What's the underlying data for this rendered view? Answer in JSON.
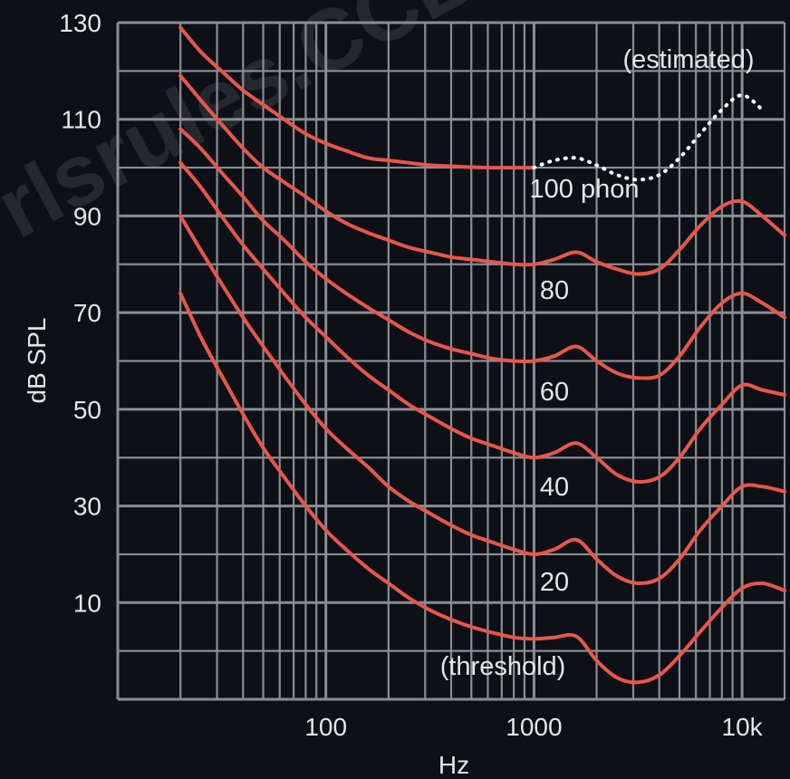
{
  "watermark": "rlsrules.CCB",
  "chart_data": {
    "type": "line",
    "title": "",
    "xlabel": "Hz",
    "ylabel": "dB SPL",
    "x_scale": "log",
    "xlim": [
      10,
      16000
    ],
    "ylim": [
      -10,
      130
    ],
    "x_ticks": [
      {
        "value": 100,
        "label": "100"
      },
      {
        "value": 1000,
        "label": "1000"
      },
      {
        "value": 10000,
        "label": "10k"
      }
    ],
    "y_ticks": [
      {
        "value": 10,
        "label": "10"
      },
      {
        "value": 30,
        "label": "30"
      },
      {
        "value": 50,
        "label": "50"
      },
      {
        "value": 70,
        "label": "70"
      },
      {
        "value": 90,
        "label": "90"
      },
      {
        "value": 110,
        "label": "110"
      },
      {
        "value": 130,
        "label": "130"
      }
    ],
    "grid": true,
    "colors": {
      "curve": "#e8574a",
      "estimated": "#ffffff",
      "grid": "#8a8d93",
      "background": "#0d1017",
      "text": "#e6e6e6"
    },
    "series": [
      {
        "name": "(threshold)",
        "x": [
          20,
          25,
          31.5,
          40,
          50,
          63,
          80,
          100,
          125,
          160,
          200,
          250,
          315,
          400,
          500,
          630,
          800,
          1000,
          1250,
          1600,
          2000,
          2500,
          3150,
          4000,
          5000,
          6300,
          8000,
          10000,
          12500,
          16000
        ],
        "values": [
          74,
          65,
          57,
          49,
          42,
          36,
          30,
          25,
          21,
          17,
          14,
          11,
          8.5,
          6.5,
          5,
          3.8,
          2.8,
          2.5,
          2.8,
          3,
          -2,
          -5.5,
          -6.5,
          -5,
          -1,
          4,
          9,
          13,
          14,
          12.5
        ]
      },
      {
        "name": "20",
        "x": [
          20,
          25,
          31.5,
          40,
          50,
          63,
          80,
          100,
          125,
          160,
          200,
          250,
          315,
          400,
          500,
          630,
          800,
          1000,
          1250,
          1600,
          2000,
          2500,
          3150,
          4000,
          5000,
          6300,
          8000,
          10000,
          12500,
          16000
        ],
        "values": [
          90,
          83,
          76,
          69,
          63,
          57,
          51,
          46,
          42,
          38,
          34,
          31,
          28.5,
          26,
          24,
          22.5,
          21,
          20,
          21,
          23,
          19,
          15.5,
          14,
          15,
          19,
          25,
          30,
          34,
          34,
          33
        ]
      },
      {
        "name": "40",
        "x": [
          20,
          25,
          31.5,
          40,
          50,
          63,
          80,
          100,
          125,
          160,
          200,
          250,
          315,
          400,
          500,
          630,
          800,
          1000,
          1250,
          1600,
          2000,
          2500,
          3150,
          4000,
          5000,
          6300,
          8000,
          10000,
          12500,
          16000
        ],
        "values": [
          101,
          96,
          90,
          84,
          79,
          74,
          69,
          65,
          61,
          57,
          54,
          51,
          48.5,
          46,
          44,
          42.5,
          41,
          40,
          41,
          43,
          40,
          36.5,
          35,
          36,
          40,
          46,
          51,
          55,
          54,
          53
        ]
      },
      {
        "name": "60",
        "x": [
          20,
          25,
          31.5,
          40,
          50,
          63,
          80,
          100,
          125,
          160,
          200,
          250,
          315,
          400,
          500,
          630,
          800,
          1000,
          1250,
          1600,
          2000,
          2500,
          3150,
          4000,
          5000,
          6300,
          8000,
          10000,
          12500,
          16000
        ],
        "values": [
          108,
          104,
          99,
          94,
          89,
          85,
          80.5,
          77,
          74,
          71,
          68.5,
          66,
          64,
          62.5,
          61.5,
          60.5,
          60,
          60,
          61,
          63,
          60,
          57.5,
          56.5,
          57,
          61,
          67,
          72,
          74,
          72,
          69
        ]
      },
      {
        "name": "80",
        "x": [
          20,
          25,
          31.5,
          40,
          50,
          63,
          80,
          100,
          125,
          160,
          200,
          250,
          315,
          400,
          500,
          630,
          800,
          1000,
          1250,
          1600,
          2000,
          2500,
          3150,
          4000,
          5000,
          6300,
          8000,
          10000,
          12500,
          16000
        ],
        "values": [
          119,
          114,
          109,
          104,
          100,
          97,
          94,
          91,
          88.5,
          86.5,
          85,
          83.5,
          82.5,
          81.5,
          81,
          80.5,
          80,
          80,
          81,
          82.5,
          80.5,
          79,
          78,
          79,
          83,
          88,
          92,
          93,
          90,
          86
        ]
      },
      {
        "name": "100 phon",
        "x": [
          20,
          25,
          31.5,
          40,
          50,
          63,
          80,
          100,
          125,
          160,
          200,
          250,
          315,
          400,
          500,
          630,
          800,
          1000
        ],
        "values": [
          129,
          124,
          120,
          116,
          113,
          110,
          107,
          105,
          103.5,
          102,
          101.5,
          101,
          100.5,
          100.3,
          100.1,
          100,
          100,
          100
        ]
      },
      {
        "name": "(estimated)",
        "style": "dotted",
        "x": [
          1000,
          1250,
          1600,
          2000,
          2500,
          3150,
          4000,
          5000,
          6300,
          8000,
          10000,
          12500
        ],
        "values": [
          100,
          101.5,
          102,
          100.5,
          98.5,
          97.5,
          98.5,
          102,
          107,
          112,
          115,
          112
        ]
      }
    ]
  }
}
